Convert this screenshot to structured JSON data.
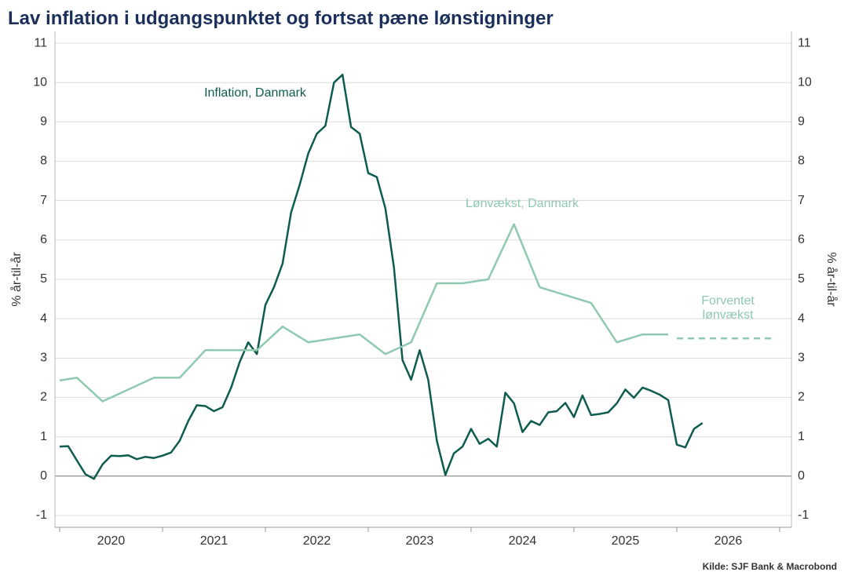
{
  "chart_data": {
    "type": "line",
    "title": "Lav inflation i udgangspunktet og fortsat pæne lønstigninger",
    "y_label": "% år-til-år",
    "y2_label": "% år-til-år",
    "source": "Kilde: SJF Bank & Macrobond",
    "xlim": [
      2019.954,
      2027.115
    ],
    "xtick_marks": [
      2020,
      2021,
      2022,
      2023,
      2024,
      2025,
      2026,
      2027
    ],
    "xticks": [
      {
        "value": 2020.5,
        "label": "2020"
      },
      {
        "value": 2021.5,
        "label": "2021"
      },
      {
        "value": 2022.5,
        "label": "2022"
      },
      {
        "value": 2023.5,
        "label": "2023"
      },
      {
        "value": 2024.5,
        "label": "2024"
      },
      {
        "value": 2025.5,
        "label": "2025"
      },
      {
        "value": 2026.5,
        "label": "2026"
      }
    ],
    "ylim": [
      -1.3,
      11.3
    ],
    "yticks": [
      -1,
      0,
      1,
      2,
      3,
      4,
      5,
      6,
      7,
      8,
      9,
      10,
      11
    ],
    "y2lim": [
      -1.3,
      11.3
    ],
    "y2ticks": [
      -1,
      0,
      1,
      2,
      3,
      4,
      5,
      6,
      7,
      8,
      9,
      10,
      11
    ],
    "grid": true,
    "series": [
      {
        "name": "Inflation, Danmark",
        "color": "#0e5c4e",
        "x": [
          2020,
          2020.083,
          2020.167,
          2020.25,
          2020.333,
          2020.417,
          2020.5,
          2020.583,
          2020.667,
          2020.75,
          2020.833,
          2020.917,
          2021,
          2021.083,
          2021.167,
          2021.25,
          2021.333,
          2021.417,
          2021.5,
          2021.583,
          2021.667,
          2021.75,
          2021.833,
          2021.917,
          2022,
          2022.083,
          2022.167,
          2022.25,
          2022.333,
          2022.417,
          2022.5,
          2022.583,
          2022.667,
          2022.75,
          2022.833,
          2022.917,
          2023,
          2023.083,
          2023.167,
          2023.25,
          2023.333,
          2023.417,
          2023.5,
          2023.583,
          2023.667,
          2023.75,
          2023.833,
          2023.917,
          2024,
          2024.083,
          2024.167,
          2024.25,
          2024.333,
          2024.417,
          2024.5,
          2024.583,
          2024.667,
          2024.75,
          2024.833,
          2024.917,
          2025,
          2025.083,
          2025.167,
          2025.25,
          2025.333,
          2025.417,
          2025.5,
          2025.583,
          2025.667,
          2025.75,
          2025.833,
          2025.917,
          2026,
          2026.083,
          2026.167,
          2026.25
        ],
        "values": [
          0.75,
          0.76,
          0.4,
          0.05,
          -0.07,
          0.3,
          0.52,
          0.51,
          0.53,
          0.43,
          0.49,
          0.46,
          0.52,
          0.6,
          0.9,
          1.4,
          1.8,
          1.78,
          1.65,
          1.75,
          2.25,
          2.9,
          3.4,
          3.1,
          4.35,
          4.8,
          5.4,
          6.7,
          7.4,
          8.2,
          8.7,
          8.9,
          10.0,
          10.2,
          8.87,
          8.7,
          7.7,
          7.6,
          6.8,
          5.3,
          2.95,
          2.45,
          3.2,
          2.45,
          0.9,
          0.03,
          0.58,
          0.75,
          1.2,
          0.82,
          0.95,
          0.75,
          2.12,
          1.85,
          1.12,
          1.4,
          1.3,
          1.62,
          1.65,
          1.86,
          1.5,
          2.05,
          1.55,
          1.58,
          1.62,
          1.85,
          2.2,
          1.99,
          2.25,
          2.17,
          2.07,
          1.93,
          0.8,
          0.73,
          1.2,
          1.35
        ]
      },
      {
        "name": "Lønvækst, Danmark",
        "color": "#8ec9b0",
        "x": [
          2020,
          2020.167,
          2020.417,
          2020.917,
          2021.167,
          2021.417,
          2021.917,
          2022.167,
          2022.417,
          2022.917,
          2023.167,
          2023.417,
          2023.667,
          2023.917,
          2024.167,
          2024.417,
          2024.667,
          2025.167,
          2025.417,
          2025.667,
          2025.917
        ],
        "values": [
          2.43,
          2.5,
          1.9,
          2.5,
          2.5,
          3.2,
          3.2,
          3.8,
          3.4,
          3.6,
          3.1,
          3.4,
          4.9,
          4.9,
          5.0,
          6.4,
          4.8,
          4.4,
          3.4,
          3.6,
          3.6
        ]
      },
      {
        "name": "Forventet lønvækst",
        "color": "#8ec9b0",
        "dashed": true,
        "x": [
          2026,
          2026.917
        ],
        "values": [
          3.5,
          3.5
        ]
      }
    ]
  }
}
